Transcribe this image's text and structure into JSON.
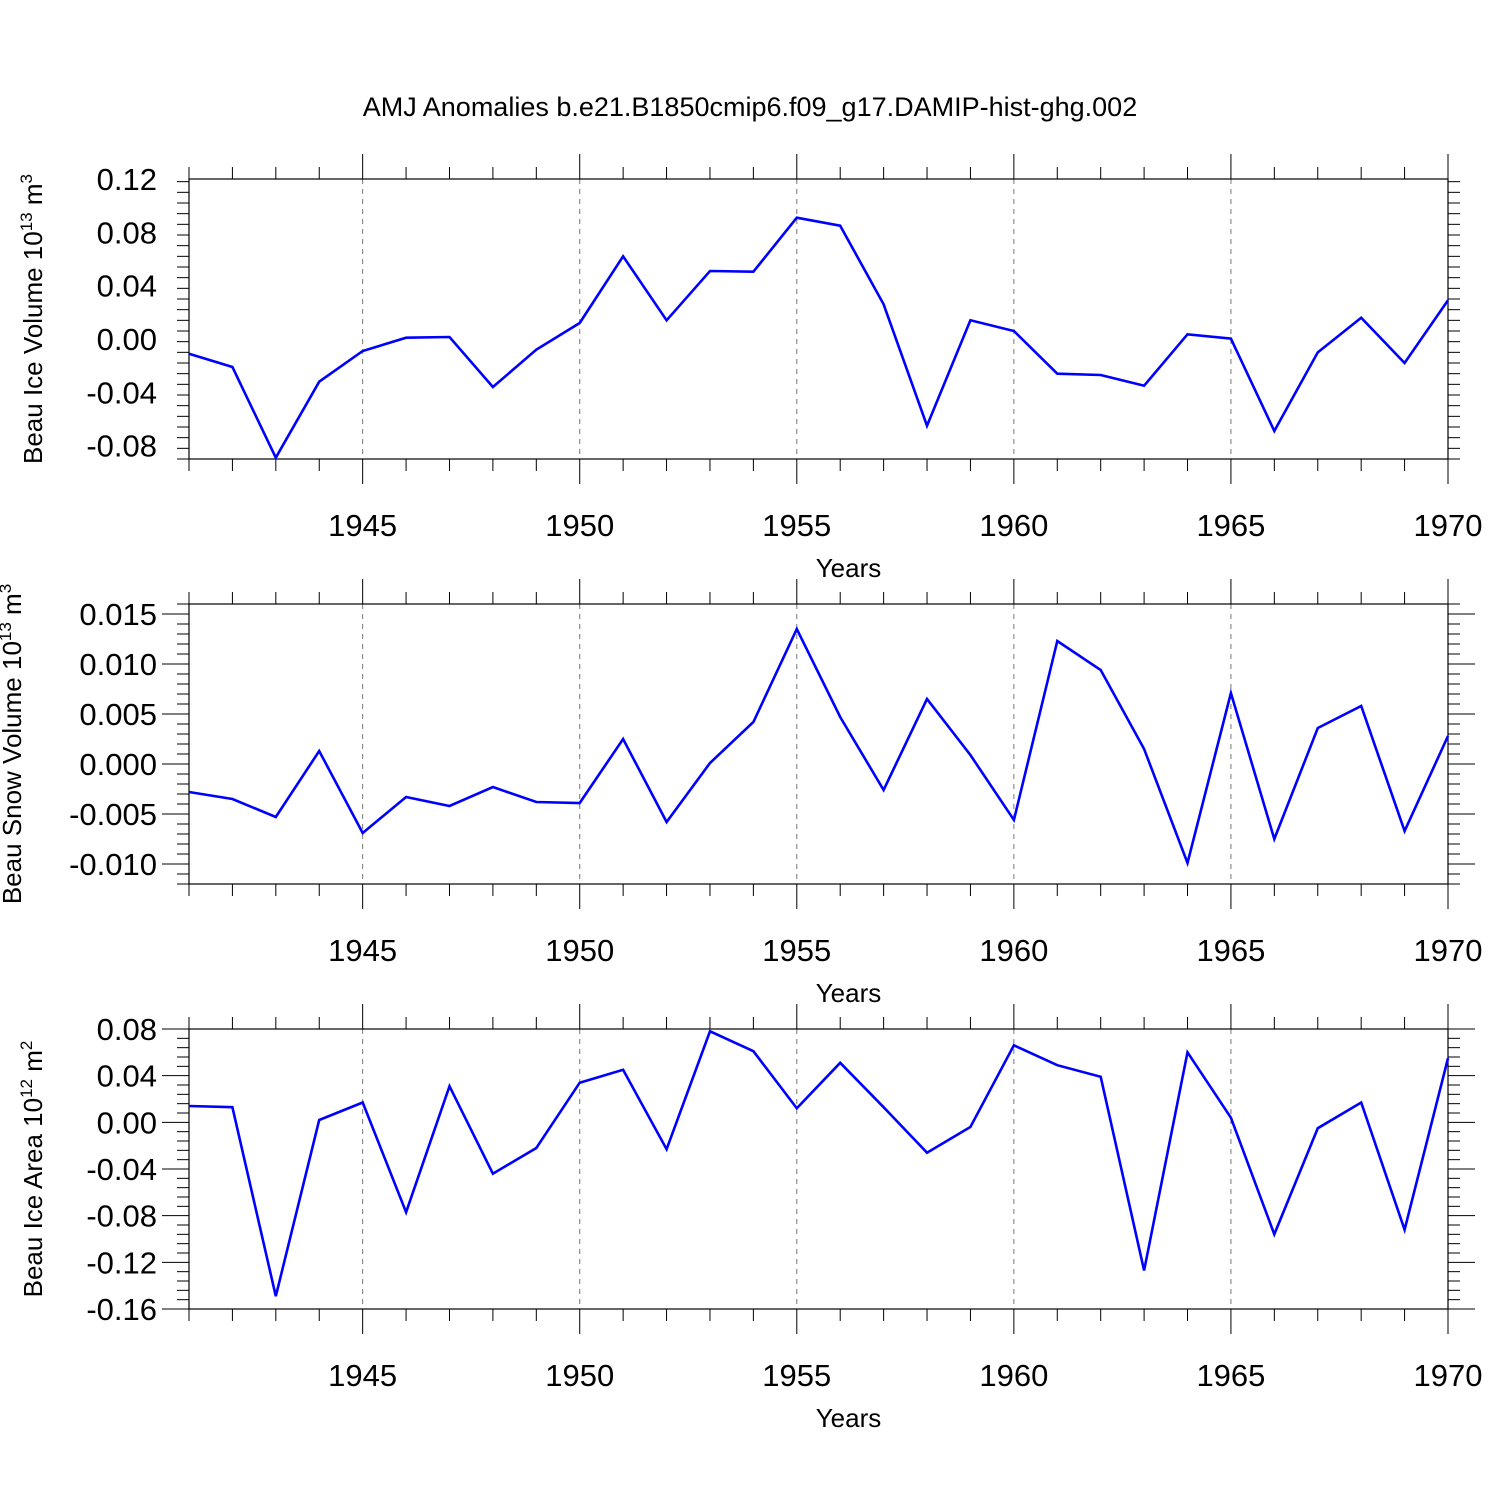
{
  "figure": {
    "title": "AMJ Anomalies b.e21.B1850cmip6.f09_g17.DAMIP-hist-ghg.002"
  },
  "chart_data": [
    {
      "type": "line",
      "title": "AMJ Anomalies b.e21.B1850cmip6.f09_g17.DAMIP-hist-ghg.002",
      "xlabel": "Years",
      "ylabel": {
        "main": "Beau Ice Volume 10",
        "exponent": "13",
        "unit": " m",
        "unit_exponent": "3"
      },
      "xlim": [
        1941,
        1970
      ],
      "ylim": [
        -0.09,
        0.12
      ],
      "xticks": [
        1945,
        1950,
        1955,
        1960,
        1965,
        1970
      ],
      "yticks": [
        -0.08,
        -0.04,
        0.0,
        0.04,
        0.08,
        0.12
      ],
      "ytick_labels": [
        "-0.08",
        "-0.04",
        "0.00",
        "0.04",
        "0.08",
        "0.12"
      ],
      "series": [
        {
          "name": "Beau Ice Volume",
          "color": "#0000ff",
          "x": [
            1941,
            1942,
            1943,
            1944,
            1945,
            1946,
            1947,
            1948,
            1949,
            1950,
            1951,
            1952,
            1953,
            1954,
            1955,
            1956,
            1957,
            1958,
            1959,
            1960,
            1961,
            1962,
            1963,
            1964,
            1965,
            1966,
            1967,
            1968,
            1969,
            1970
          ],
          "values": [
            -0.011,
            -0.021,
            -0.089,
            -0.032,
            -0.009,
            0.001,
            0.0015,
            -0.036,
            -0.008,
            0.012,
            0.062,
            0.014,
            0.051,
            0.0505,
            0.091,
            0.085,
            0.026,
            -0.065,
            0.014,
            0.006,
            -0.026,
            -0.027,
            -0.035,
            0.0035,
            0.0003,
            -0.069,
            -0.01,
            0.016,
            -0.018,
            0.029
          ]
        }
      ]
    },
    {
      "type": "line",
      "xlabel": "Years",
      "ylabel": {
        "main": "Beau Snow Volume 10",
        "exponent": "13",
        "unit": " m",
        "unit_exponent": "3"
      },
      "xlim": [
        1941,
        1970
      ],
      "ylim": [
        -0.012,
        0.016
      ],
      "xticks": [
        1945,
        1950,
        1955,
        1960,
        1965,
        1970
      ],
      "yticks": [
        -0.01,
        -0.005,
        0.0,
        0.005,
        0.01,
        0.015
      ],
      "ytick_labels": [
        "-0.010",
        "-0.005",
        "0.000",
        "0.005",
        "0.010",
        "0.015"
      ],
      "series": [
        {
          "name": "Beau Snow Volume",
          "color": "#0000ff",
          "x": [
            1941,
            1942,
            1943,
            1944,
            1945,
            1946,
            1947,
            1948,
            1949,
            1950,
            1951,
            1952,
            1953,
            1954,
            1955,
            1956,
            1957,
            1958,
            1959,
            1960,
            1961,
            1962,
            1963,
            1964,
            1965,
            1966,
            1967,
            1968,
            1969,
            1970
          ],
          "values": [
            -0.0028,
            -0.0035,
            -0.0053,
            0.0013,
            -0.0069,
            -0.0033,
            -0.0042,
            -0.0023,
            -0.0038,
            -0.0039,
            0.0025,
            -0.0058,
            0.0001,
            0.0042,
            0.0135,
            0.0047,
            -0.0026,
            0.0065,
            0.0009,
            -0.0056,
            0.0123,
            0.0094,
            0.0015,
            -0.0099,
            0.0071,
            -0.0075,
            0.0036,
            0.0058,
            -0.0067,
            0.0028
          ]
        }
      ]
    },
    {
      "type": "line",
      "xlabel": "Years",
      "ylabel": {
        "main": "Beau Ice Area 10",
        "exponent": "12",
        "unit": " m",
        "unit_exponent": "2"
      },
      "xlim": [
        1941,
        1970
      ],
      "ylim": [
        -0.16,
        0.08
      ],
      "xticks": [
        1945,
        1950,
        1955,
        1960,
        1965,
        1970
      ],
      "yticks": [
        -0.16,
        -0.12,
        -0.08,
        -0.04,
        0.0,
        0.04,
        0.08
      ],
      "ytick_labels": [
        "-0.16",
        "-0.12",
        "-0.08",
        "-0.04",
        "0.00",
        "0.04",
        "0.08"
      ],
      "series": [
        {
          "name": "Beau Ice Area",
          "color": "#0000ff",
          "x": [
            1941,
            1942,
            1943,
            1944,
            1945,
            1946,
            1947,
            1948,
            1949,
            1950,
            1951,
            1952,
            1953,
            1954,
            1955,
            1956,
            1957,
            1958,
            1959,
            1960,
            1961,
            1962,
            1963,
            1964,
            1965,
            1966,
            1967,
            1968,
            1969,
            1970
          ],
          "values": [
            0.014,
            0.013,
            -0.149,
            0.002,
            0.017,
            -0.077,
            0.031,
            -0.044,
            -0.022,
            0.034,
            0.045,
            -0.023,
            0.078,
            0.061,
            0.012,
            0.051,
            0.013,
            -0.026,
            -0.004,
            0.066,
            0.049,
            0.039,
            -0.127,
            0.06,
            0.004,
            -0.096,
            -0.005,
            0.017,
            -0.092,
            0.055
          ]
        }
      ]
    }
  ]
}
